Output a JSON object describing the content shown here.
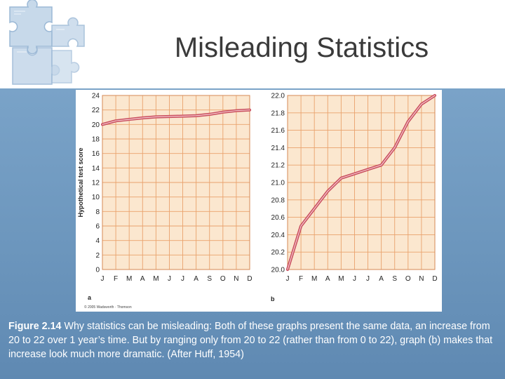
{
  "slide": {
    "title": "Misleading Statistics",
    "caption_label": "Figure 2.14",
    "caption_text": " Why statistics can be misleading: Both of these graphs present the same data, an increase from 20 to 22 over 1 year’s time. But by ranging only from 20 to 22 (rather than from 0 to 22), graph (b) makes that increase look much more dramatic. (After Huff, 1954)",
    "credit": "© 2005 Wadsworth · Thomson",
    "decoration_icon": "puzzle-pieces-icon"
  },
  "colors": {
    "band": "#6c96bd",
    "grid_bg": "#fbe7cf",
    "grid_line": "#e9a26c",
    "line": "#c9505f",
    "title": "#3a3a3a"
  },
  "chart_data": [
    {
      "type": "line",
      "panel": "a",
      "x": [
        "J",
        "F",
        "M",
        "A",
        "M",
        "J",
        "J",
        "A",
        "S",
        "O",
        "N",
        "D"
      ],
      "y": [
        20.0,
        20.5,
        20.7,
        20.9,
        21.05,
        21.1,
        21.15,
        21.2,
        21.4,
        21.7,
        21.9,
        22.0
      ],
      "ylabel": "Hypothetical test score",
      "ylim": [
        0,
        24
      ],
      "yticks": [
        0,
        2,
        4,
        6,
        8,
        10,
        12,
        14,
        16,
        18,
        20,
        22,
        24
      ],
      "grid": true
    },
    {
      "type": "line",
      "panel": "b",
      "x": [
        "J",
        "F",
        "M",
        "A",
        "M",
        "J",
        "J",
        "A",
        "S",
        "O",
        "N",
        "D"
      ],
      "y": [
        20.0,
        20.5,
        20.7,
        20.9,
        21.05,
        21.1,
        21.15,
        21.2,
        21.4,
        21.7,
        21.9,
        22.0
      ],
      "ylim": [
        20.0,
        22.0
      ],
      "yticks": [
        "20.0",
        "20.2",
        "20.4",
        "20.6",
        "20.8",
        "21.0",
        "21.2",
        "21.4",
        "21.6",
        "21.8",
        "22.0"
      ],
      "grid": true
    }
  ]
}
